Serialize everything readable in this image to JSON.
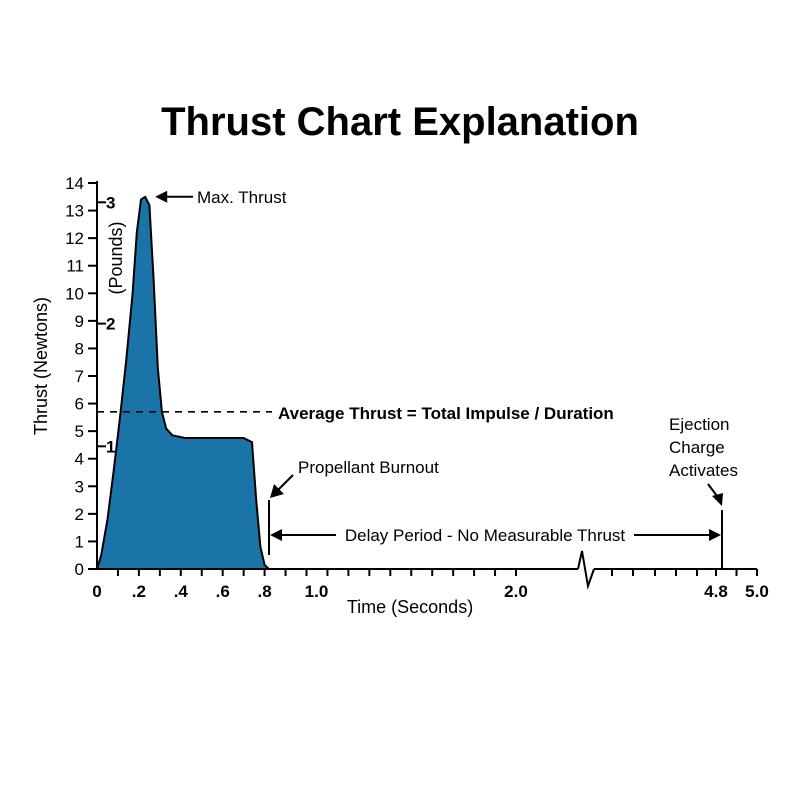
{
  "page": {
    "title": "Thrust Chart Explanation"
  },
  "chart_data": {
    "type": "area",
    "title": "Thrust Chart Explanation",
    "xlabel": "Time (Seconds)",
    "ylabel": "Thrust (Newtons)",
    "ylabel_secondary": "(Pounds)",
    "xlim": [
      0,
      5.0
    ],
    "ylim": [
      0,
      14
    ],
    "x_axis_break_between": [
      2.0,
      4.8
    ],
    "grid": false,
    "fill_color": "#1a74a8",
    "y_ticks": [
      "0",
      "1",
      "2",
      "3",
      "4",
      "5",
      "6",
      "7",
      "8",
      "9",
      "10",
      "11",
      "12",
      "13",
      "14"
    ],
    "y_ticks_pounds": [
      {
        "label": "1",
        "value_newtons": 4.45
      },
      {
        "label": "2",
        "value_newtons": 8.9
      },
      {
        "label": "3",
        "value_newtons": 13.3
      }
    ],
    "x_ticks": [
      {
        "label": "0",
        "value": 0
      },
      {
        "label": ".2",
        "value": 0.2
      },
      {
        "label": ".4",
        "value": 0.4
      },
      {
        "label": ".6",
        "value": 0.6
      },
      {
        "label": ".8",
        "value": 0.8
      },
      {
        "label": "1.0",
        "value": 1.0
      },
      {
        "label": "2.0",
        "value": 2.0
      },
      {
        "label": "4.8",
        "value": 4.8
      },
      {
        "label": "5.0",
        "value": 5.0
      }
    ],
    "series": [
      {
        "x": [
          0,
          0.02,
          0.05,
          0.08,
          0.11,
          0.14,
          0.17,
          0.19,
          0.21,
          0.23,
          0.25,
          0.27,
          0.29,
          0.31,
          0.33,
          0.36,
          0.42,
          0.5,
          0.6,
          0.7,
          0.74,
          0.76,
          0.78,
          0.8,
          0.82
        ],
        "y": [
          0,
          0.5,
          1.8,
          3.6,
          5.5,
          7.6,
          10.0,
          12.2,
          13.4,
          13.5,
          13.2,
          10.5,
          7.3,
          5.7,
          5.1,
          4.85,
          4.75,
          4.75,
          4.75,
          4.75,
          4.6,
          2.5,
          0.8,
          0.15,
          0
        ]
      }
    ],
    "average_thrust": 5.7,
    "annotations": {
      "max_thrust": "Max. Thrust",
      "average": "Average Thrust = Total Impulse / Duration",
      "burnout": "Propellant Burnout",
      "delay": "Delay Period - No Measurable Thrust",
      "ejection_line1": "Ejection",
      "ejection_line2": "Charge",
      "ejection_line3": "Activates"
    }
  }
}
